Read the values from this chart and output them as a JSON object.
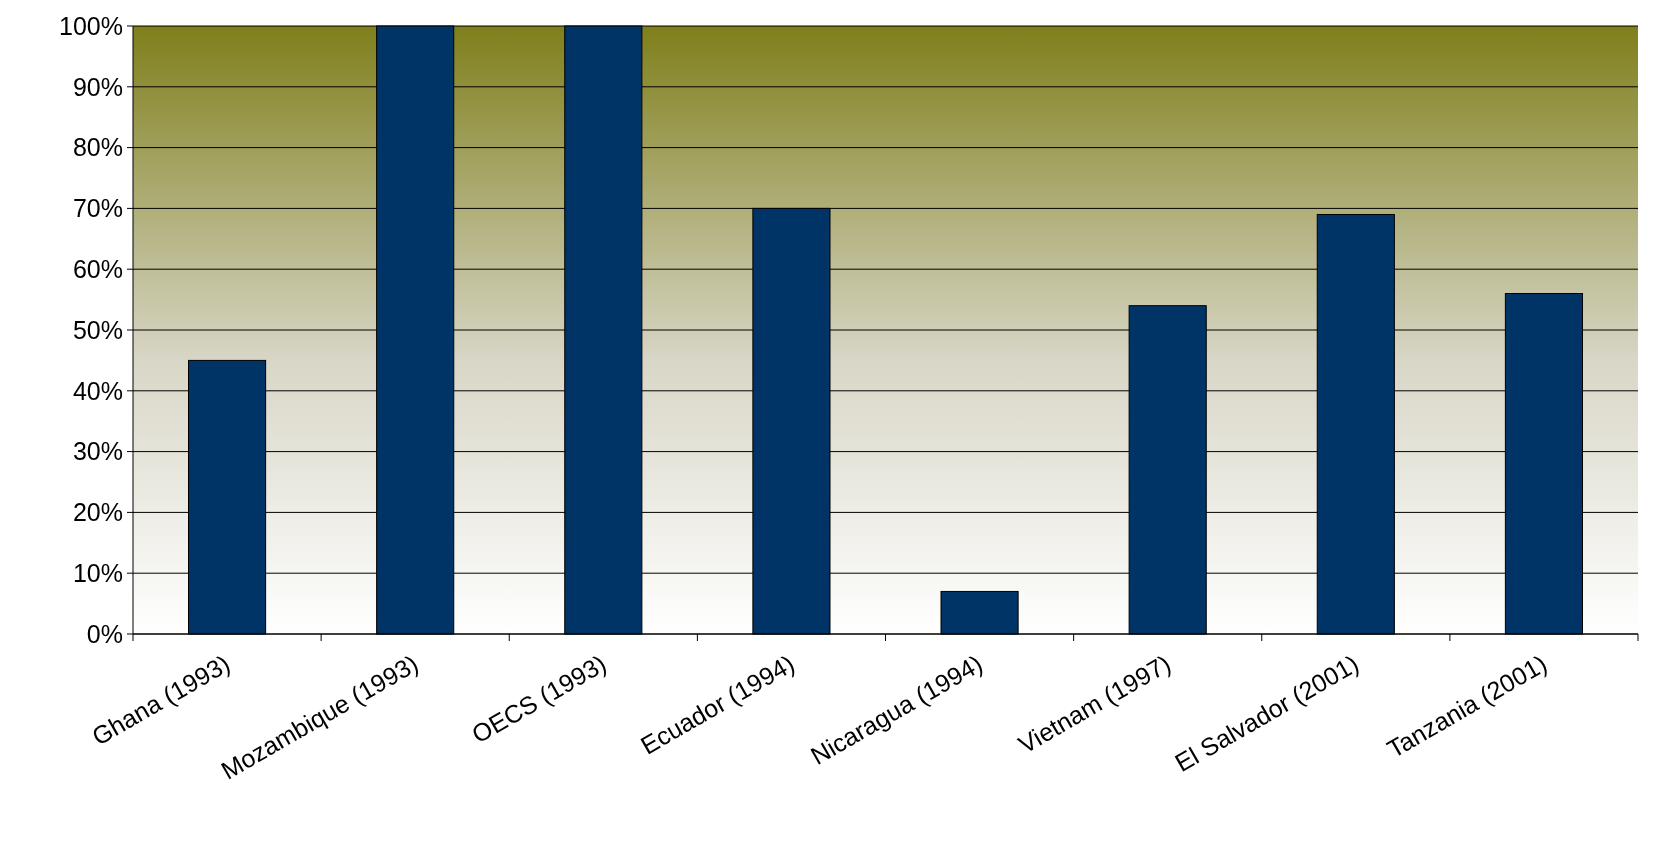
{
  "chart_data": {
    "type": "bar",
    "categories": [
      "Ghana (1993)",
      "Mozambique (1993)",
      "OECS (1993)",
      "Ecuador (1994)",
      "Nicaragua (1994)",
      "Vietnam (1997)",
      "El Salvador (2001)",
      "Tanzania (2001)"
    ],
    "values": [
      45,
      100,
      100,
      70,
      7,
      54,
      69,
      56
    ],
    "color": "#003366",
    "ylim": [
      0,
      100
    ],
    "yticks": [
      {
        "value": 0,
        "label": "0%"
      },
      {
        "value": 10,
        "label": "10%"
      },
      {
        "value": 20,
        "label": "20%"
      },
      {
        "value": 30,
        "label": "30%"
      },
      {
        "value": 40,
        "label": "40%"
      },
      {
        "value": 50,
        "label": "50%"
      },
      {
        "value": 60,
        "label": "60%"
      },
      {
        "value": 70,
        "label": "70%"
      },
      {
        "value": 80,
        "label": "80%"
      },
      {
        "value": 90,
        "label": "90%"
      },
      {
        "value": 100,
        "label": "100%"
      }
    ],
    "grid": "y"
  }
}
